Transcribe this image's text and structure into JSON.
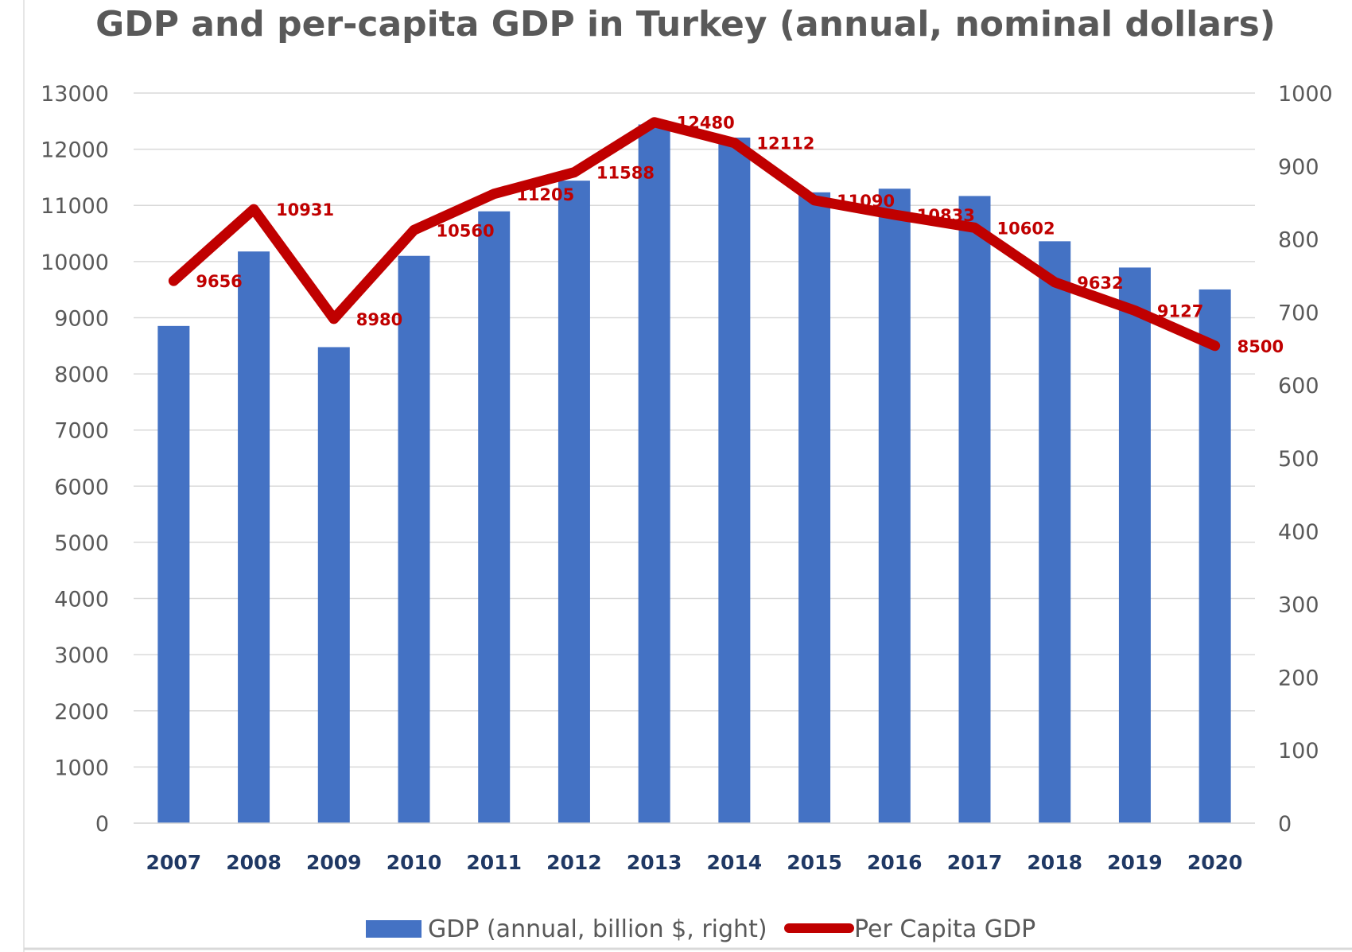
{
  "chart_data": {
    "type": "bar",
    "title": "GDP and per-capita GDP in Turkey (annual, nominal dollars)",
    "categories": [
      "2007",
      "2008",
      "2009",
      "2010",
      "2011",
      "2012",
      "2013",
      "2014",
      "2015",
      "2016",
      "2017",
      "2018",
      "2019",
      "2020"
    ],
    "series": [
      {
        "name": "GDP (annual, billion $, right)",
        "type": "bar",
        "axis": "right",
        "color": "#4472c4",
        "values": [
          681,
          783,
          652,
          777,
          838,
          880,
          957,
          939,
          864,
          869,
          859,
          797,
          761,
          731
        ]
      },
      {
        "name": "Per Capita GDP",
        "type": "line",
        "axis": "left",
        "color": "#c00000",
        "values": [
          9656,
          10931,
          8980,
          10560,
          11205,
          11588,
          12480,
          12112,
          11090,
          10833,
          10602,
          9632,
          9127,
          8500
        ],
        "labels": [
          "9656",
          "10931",
          "8980",
          "10560",
          "11205",
          "11588",
          "12480",
          "12112",
          "11090",
          "10833",
          "10602",
          "9632",
          "9127",
          "8500"
        ]
      }
    ],
    "left_axis": {
      "ylim": [
        0,
        13000
      ],
      "ticks": [
        "0",
        "1000",
        "2000",
        "3000",
        "4000",
        "5000",
        "6000",
        "7000",
        "8000",
        "9000",
        "10000",
        "11000",
        "12000",
        "13000"
      ]
    },
    "right_axis": {
      "ylim": [
        0,
        1000
      ],
      "ticks": [
        "0",
        "100",
        "200",
        "300",
        "400",
        "500",
        "600",
        "700",
        "800",
        "900",
        "1000"
      ]
    },
    "grid": true,
    "legend_position": "bottom"
  }
}
